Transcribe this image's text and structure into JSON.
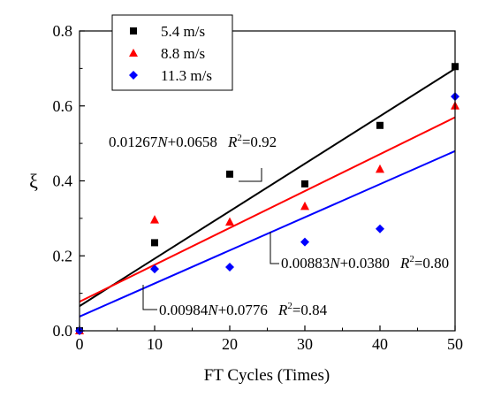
{
  "chart_data": {
    "type": "scatter",
    "title": "",
    "xlabel": "FT Cycles (Times)",
    "ylabel": "ξ",
    "xlim": [
      0,
      50
    ],
    "ylim": [
      0,
      0.8
    ],
    "xticks": [
      0,
      10,
      20,
      30,
      40,
      50
    ],
    "yticks": [
      0.0,
      0.2,
      0.4,
      0.6,
      0.8
    ],
    "xtick_labels": [
      "0",
      "10",
      "20",
      "30",
      "40",
      "50"
    ],
    "ytick_labels": [
      "0.0",
      "0.2",
      "0.4",
      "0.6",
      "0.8"
    ],
    "grid": false,
    "legend_position": "top-left",
    "series": [
      {
        "name": "5.4 m/s",
        "marker": "square",
        "color": "#000000",
        "x": [
          0,
          10,
          20,
          30,
          40,
          50
        ],
        "y": [
          0.0,
          0.235,
          0.418,
          0.392,
          0.548,
          0.705
        ],
        "fit": {
          "slope": 0.01267,
          "intercept": 0.0658
        }
      },
      {
        "name": "8.8 m/s",
        "marker": "triangle",
        "color": "#ff0000",
        "x": [
          0,
          10,
          20,
          30,
          40,
          50
        ],
        "y": [
          0.0,
          0.296,
          0.29,
          0.332,
          0.431,
          0.6
        ],
        "fit": {
          "slope": 0.00984,
          "intercept": 0.0776
        }
      },
      {
        "name": "11.3 m/s",
        "marker": "diamond",
        "color": "#0000ff",
        "x": [
          0,
          10,
          20,
          30,
          40,
          50
        ],
        "y": [
          0.0,
          0.165,
          0.17,
          0.237,
          0.272,
          0.625
        ],
        "fit": {
          "slope": 0.00883,
          "intercept": 0.038
        }
      }
    ],
    "annotations": [
      {
        "series": 0,
        "coef": "0.01267",
        "const": "+0.0658",
        "r2": "=0.92"
      },
      {
        "series": 2,
        "coef": "0.00883",
        "const": "+0.0380",
        "r2": "=0.80"
      },
      {
        "series": 1,
        "coef": "0.00984",
        "const": "+0.0776",
        "r2": "=0.84"
      }
    ]
  }
}
